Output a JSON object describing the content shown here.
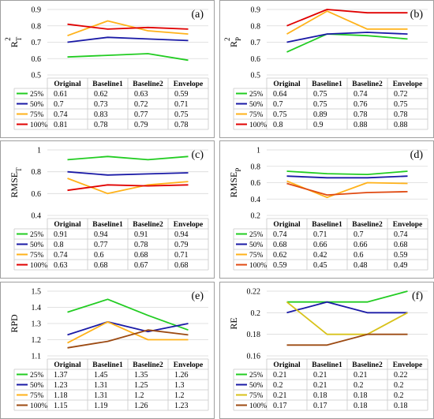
{
  "colors": {
    "25%": "#22cc22",
    "50%": "#1a1aa6",
    "75%": "#ffb21a",
    "100%": "#e00000",
    "100%_brown": "#9c4a12",
    "grid": "#d9d9d9",
    "table": "#c8c8c8"
  },
  "chart_data": [
    {
      "label": "(a)",
      "type": "line",
      "ylabel_main": "R",
      "ylabel_sub": "T",
      "ylabel_sup": "2",
      "categories": [
        "Original",
        "Baseline1",
        "Baseline2",
        "Envelope"
      ],
      "ylim": [
        0.5,
        0.9
      ],
      "yticks": [
        "0.5",
        "0.6",
        "0.7",
        "0.8",
        "0.9"
      ],
      "grid": true,
      "series": [
        {
          "name": "25%",
          "color": "#22cc22",
          "values": [
            0.61,
            0.62,
            0.63,
            0.59
          ],
          "labels": [
            "0.61",
            "0.62",
            "0.63",
            "0.59"
          ]
        },
        {
          "name": "50%",
          "color": "#1a1aa6",
          "values": [
            0.7,
            0.73,
            0.72,
            0.71
          ],
          "labels": [
            "0.7",
            "0.73",
            "0.72",
            "0.71"
          ]
        },
        {
          "name": "75%",
          "color": "#ffb21a",
          "values": [
            0.74,
            0.83,
            0.77,
            0.75
          ],
          "labels": [
            "0.74",
            "0.83",
            "0.77",
            "0.75"
          ]
        },
        {
          "name": "100%",
          "color": "#e00000",
          "values": [
            0.81,
            0.78,
            0.79,
            0.78
          ],
          "labels": [
            "0.81",
            "0.78",
            "0.79",
            "0.78"
          ]
        }
      ]
    },
    {
      "label": "(b)",
      "type": "line",
      "ylabel_main": "R",
      "ylabel_sub": "P",
      "ylabel_sup": "2",
      "categories": [
        "Original",
        "Baseline1",
        "Baseline2",
        "Envelope"
      ],
      "ylim": [
        0.5,
        0.9
      ],
      "yticks": [
        "0.5",
        "0.6",
        "0.7",
        "0.8",
        "0.9"
      ],
      "grid": true,
      "series": [
        {
          "name": "25%",
          "color": "#22cc22",
          "values": [
            0.64,
            0.75,
            0.74,
            0.72
          ],
          "labels": [
            "0.64",
            "0.75",
            "0.74",
            "0.72"
          ]
        },
        {
          "name": "50%",
          "color": "#1a1aa6",
          "values": [
            0.7,
            0.75,
            0.76,
            0.75
          ],
          "labels": [
            "0.7",
            "0.75",
            "0.76",
            "0.75"
          ]
        },
        {
          "name": "75%",
          "color": "#ffb21a",
          "values": [
            0.75,
            0.89,
            0.78,
            0.78
          ],
          "labels": [
            "0.75",
            "0.89",
            "0.78",
            "0.78"
          ]
        },
        {
          "name": "100%",
          "color": "#e00000",
          "values": [
            0.8,
            0.9,
            0.88,
            0.88
          ],
          "labels": [
            "0.8",
            "0.9",
            "0.88",
            "0.88"
          ]
        }
      ]
    },
    {
      "label": "(c)",
      "type": "line",
      "ylabel_main": "RMSE",
      "ylabel_sub": "T",
      "ylabel_sup": "",
      "categories": [
        "Original",
        "Baseline1",
        "Baseline2",
        "Envelope"
      ],
      "ylim": [
        0.4,
        1.0
      ],
      "yticks": [
        "0.4",
        "0.6",
        "0.8",
        "1"
      ],
      "grid": true,
      "series": [
        {
          "name": "25%",
          "color": "#22cc22",
          "values": [
            0.91,
            0.94,
            0.91,
            0.94
          ],
          "labels": [
            "0.91",
            "0.94",
            "0.91",
            "0.94"
          ]
        },
        {
          "name": "50%",
          "color": "#1a1aa6",
          "values": [
            0.8,
            0.77,
            0.78,
            0.79
          ],
          "labels": [
            "0.8",
            "0.77",
            "0.78",
            "0.79"
          ]
        },
        {
          "name": "75%",
          "color": "#ffb21a",
          "values": [
            0.74,
            0.6,
            0.68,
            0.71
          ],
          "labels": [
            "0.74",
            "0.6",
            "0.68",
            "0.71"
          ]
        },
        {
          "name": "100%",
          "color": "#e00000",
          "values": [
            0.63,
            0.68,
            0.67,
            0.68
          ],
          "labels": [
            "0.63",
            "0.68",
            "0.67",
            "0.68"
          ]
        }
      ]
    },
    {
      "label": "(d)",
      "type": "line",
      "ylabel_main": "RMSE",
      "ylabel_sub": "P",
      "ylabel_sup": "",
      "categories": [
        "Original",
        "Baseline1",
        "Baseline2",
        "Envelope"
      ],
      "ylim": [
        0.2,
        1.0
      ],
      "yticks": [
        "0.2",
        "0.4",
        "0.6",
        "0.8",
        "1"
      ],
      "grid": true,
      "series": [
        {
          "name": "25%",
          "color": "#22cc22",
          "values": [
            0.74,
            0.71,
            0.7,
            0.74
          ],
          "labels": [
            "0.74",
            "0.71",
            "0.7",
            "0.74"
          ]
        },
        {
          "name": "50%",
          "color": "#1a1aa6",
          "values": [
            0.68,
            0.66,
            0.66,
            0.68
          ],
          "labels": [
            "0.68",
            "0.66",
            "0.66",
            "0.68"
          ]
        },
        {
          "name": "75%",
          "color": "#ffb21a",
          "values": [
            0.62,
            0.42,
            0.6,
            0.59
          ],
          "labels": [
            "0.62",
            "0.42",
            "0.6",
            "0.59"
          ]
        },
        {
          "name": "100%",
          "color": "#e04a12",
          "values": [
            0.59,
            0.45,
            0.48,
            0.49
          ],
          "labels": [
            "0.59",
            "0.45",
            "0.48",
            "0.49"
          ]
        }
      ]
    },
    {
      "label": "(e)",
      "type": "line",
      "ylabel_main": "RPD",
      "ylabel_sub": "",
      "ylabel_sup": "",
      "categories": [
        "Original",
        "Baseline1",
        "Baseline2",
        "Envelope"
      ],
      "ylim": [
        1.1,
        1.5
      ],
      "yticks": [
        "1.1",
        "1.2",
        "1.3",
        "1.4",
        "1.5"
      ],
      "grid": true,
      "series": [
        {
          "name": "25%",
          "color": "#22cc22",
          "values": [
            1.37,
            1.45,
            1.35,
            1.26
          ],
          "labels": [
            "1.37",
            "1.45",
            "1.35",
            "1.26"
          ]
        },
        {
          "name": "50%",
          "color": "#1a1aa6",
          "values": [
            1.23,
            1.31,
            1.25,
            1.3
          ],
          "labels": [
            "1.23",
            "1.31",
            "1.25",
            "1.3"
          ]
        },
        {
          "name": "75%",
          "color": "#ffb21a",
          "values": [
            1.18,
            1.31,
            1.2,
            1.2
          ],
          "labels": [
            "1.18",
            "1.31",
            "1.2",
            "1.2"
          ]
        },
        {
          "name": "100%",
          "color": "#9c4a12",
          "values": [
            1.15,
            1.19,
            1.26,
            1.23
          ],
          "labels": [
            "1.15",
            "1.19",
            "1.26",
            "1.23"
          ]
        }
      ]
    },
    {
      "label": "(f)",
      "type": "line",
      "ylabel_main": "RE",
      "ylabel_sub": "",
      "ylabel_sup": "",
      "categories": [
        "Original",
        "Baseline1",
        "Baseline2",
        "Envelope"
      ],
      "ylim": [
        0.16,
        0.22
      ],
      "yticks": [
        "0.16",
        "0.18",
        "0.2",
        "0.22"
      ],
      "grid": true,
      "series": [
        {
          "name": "25%",
          "color": "#22cc22",
          "values": [
            0.21,
            0.21,
            0.21,
            0.22
          ],
          "labels": [
            "0.21",
            "0.21",
            "0.21",
            "0.22"
          ]
        },
        {
          "name": "50%",
          "color": "#1a1aa6",
          "values": [
            0.2,
            0.21,
            0.2,
            0.2
          ],
          "labels": [
            "0.2",
            "0.21",
            "0.2",
            "0.2"
          ]
        },
        {
          "name": "75%",
          "color": "#d8c21a",
          "values": [
            0.21,
            0.18,
            0.18,
            0.2
          ],
          "labels": [
            "0.21",
            "0.18",
            "0.18",
            "0.2"
          ]
        },
        {
          "name": "100%",
          "color": "#9c4a12",
          "values": [
            0.17,
            0.17,
            0.18,
            0.18
          ],
          "labels": [
            "0.17",
            "0.17",
            "0.18",
            "0.18"
          ]
        }
      ]
    }
  ]
}
